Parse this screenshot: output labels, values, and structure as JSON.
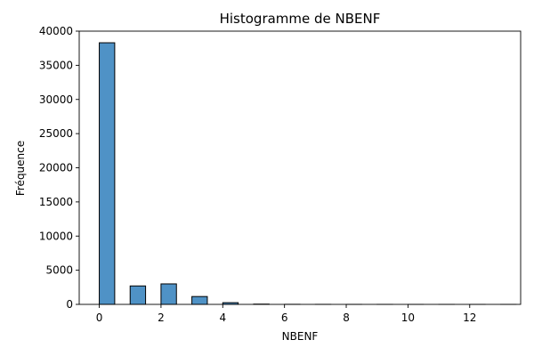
{
  "chart_data": {
    "type": "bar",
    "title": "Histogramme de NBENF",
    "xlabel": "NBENF",
    "ylabel": "Fréquence",
    "xlim": [
      -0.65,
      13.65
    ],
    "ylim": [
      0,
      40000
    ],
    "xticks": [
      0,
      2,
      4,
      6,
      8,
      10,
      12
    ],
    "yticks": [
      0,
      5000,
      10000,
      15000,
      20000,
      25000,
      30000,
      35000,
      40000
    ],
    "bin_width": 0.5,
    "bins": [
      {
        "x": 0,
        "count": 38300
      },
      {
        "x": 1,
        "count": 2700
      },
      {
        "x": 2,
        "count": 3000
      },
      {
        "x": 3,
        "count": 1150
      },
      {
        "x": 4,
        "count": 250
      },
      {
        "x": 5,
        "count": 40
      },
      {
        "x": 6,
        "count": 10
      },
      {
        "x": 7,
        "count": 5
      },
      {
        "x": 8,
        "count": 3
      },
      {
        "x": 9,
        "count": 2
      },
      {
        "x": 10,
        "count": 1
      },
      {
        "x": 11,
        "count": 1
      },
      {
        "x": 12,
        "count": 1
      },
      {
        "x": 13,
        "count": 1
      }
    ],
    "grid": false,
    "bar_color": "#4f92c6",
    "edge_color": "#000000"
  }
}
